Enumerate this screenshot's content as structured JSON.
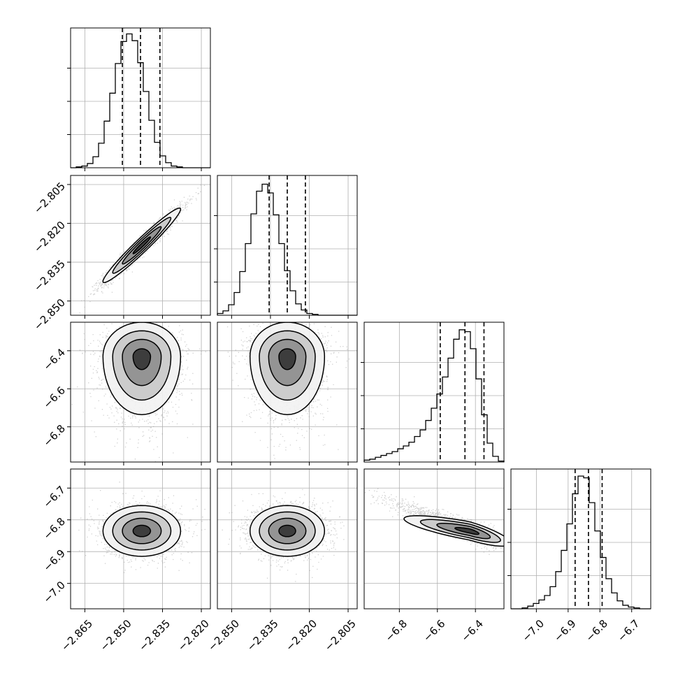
{
  "chart_data": {
    "type": "corner",
    "grid": true,
    "parameters": [
      {
        "range": [
          -2.8705,
          -2.8165
        ],
        "ticks": [
          "−2.865",
          "−2.850",
          "−2.835",
          "−2.820"
        ],
        "tick_values": [
          -2.865,
          -2.85,
          -2.835,
          -2.82
        ],
        "mean": -2.843,
        "sigma": 0.0075,
        "quantiles": [
          -2.8505,
          -2.8435,
          -2.836
        ]
      },
      {
        "range": [
          -2.8555,
          -2.8015
        ],
        "ticks": [
          "−2.850",
          "−2.835",
          "−2.820",
          "−2.805"
        ],
        "tick_values": [
          -2.85,
          -2.835,
          -2.82,
          -2.805
        ],
        "mean": -2.8285,
        "sigma": 0.0072,
        "quantiles": [
          -2.8355,
          -2.8285,
          -2.8215
        ]
      },
      {
        "range": [
          -6.985,
          -6.25
        ],
        "ticks": [
          "−6.8",
          "−6.6",
          "−6.4"
        ],
        "tick_values": [
          -6.8,
          -6.6,
          -6.4
        ],
        "mean": -6.43,
        "sigma": 0.09,
        "quantiles": [
          -6.585,
          -6.455,
          -6.355
        ]
      },
      {
        "range": [
          -7.08,
          -6.64
        ],
        "ticks": [
          "−7.0",
          "−6.9",
          "−6.8",
          "−6.7"
        ],
        "tick_values": [
          -7.0,
          -6.9,
          -6.8,
          -6.7
        ],
        "mean": -6.835,
        "sigma": 0.04,
        "quantiles": [
          -6.878,
          -6.836,
          -6.793
        ]
      }
    ],
    "histograms": [
      {
        "param": 0,
        "bin_start": -2.8705,
        "bin_width": 0.00216,
        "counts": [
          0,
          1,
          2,
          5,
          13,
          29,
          55,
          88,
          123,
          149,
          158,
          150,
          124,
          90,
          56,
          30,
          14,
          6,
          2,
          1,
          0,
          0,
          0,
          0,
          0
        ],
        "ymax": 165
      },
      {
        "param": 1,
        "bin_start": -2.8555,
        "bin_width": 0.00216,
        "counts": [
          2,
          5,
          12,
          26,
          50,
          82,
          116,
          142,
          150,
          140,
          115,
          82,
          51,
          28,
          13,
          6,
          2,
          1,
          0,
          0,
          0,
          0,
          0,
          0,
          0
        ],
        "ymax": 160
      },
      {
        "param": 2,
        "bin_start": -6.985,
        "bin_width": 0.0294,
        "counts": [
          2,
          3,
          5,
          7,
          9,
          11,
          14,
          17,
          21,
          27,
          34,
          44,
          57,
          72,
          90,
          110,
          130,
          140,
          138,
          120,
          88,
          50,
          20,
          6,
          1
        ],
        "ymax": 148
      },
      {
        "param": 3,
        "bin_start": -7.08,
        "bin_width": 0.0176,
        "counts": [
          0,
          0,
          1,
          3,
          6,
          10,
          15,
          25,
          42,
          66,
          96,
          130,
          150,
          148,
          120,
          88,
          58,
          34,
          18,
          9,
          4,
          2,
          1,
          0,
          0
        ],
        "ymax": 158
      }
    ],
    "correlations": [
      {
        "pair": [
          1,
          0
        ],
        "rho": 0.97
      },
      {
        "pair": [
          2,
          0
        ],
        "rho": 0.1
      },
      {
        "pair": [
          2,
          1
        ],
        "rho": 0.1
      },
      {
        "pair": [
          3,
          0
        ],
        "rho": 0.0
      },
      {
        "pair": [
          3,
          1
        ],
        "rho": 0.0
      },
      {
        "pair": [
          3,
          2
        ],
        "rho": -0.8
      }
    ]
  }
}
